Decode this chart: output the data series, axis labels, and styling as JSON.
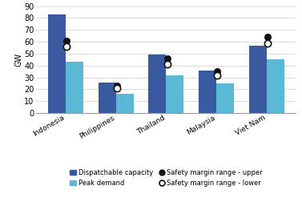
{
  "categories": [
    "Indonesia",
    "Philippines",
    "Thailand",
    "Malaysia",
    "Viet Nam"
  ],
  "dispatchable_capacity": [
    83,
    26,
    49,
    36,
    57
  ],
  "peak_demand": [
    43,
    16,
    32,
    25,
    45
  ],
  "safety_upper": [
    61,
    23,
    46,
    35,
    64
  ],
  "safety_lower": [
    56,
    21,
    41,
    32,
    59
  ],
  "bar_color_dispatch": "#3A5AA0",
  "bar_color_peak": "#5BB8D4",
  "marker_upper_color": "#111111",
  "marker_edge_color": "#111111",
  "ylabel": "GW",
  "ylim": [
    0,
    90
  ],
  "yticks": [
    0,
    10,
    20,
    30,
    40,
    50,
    60,
    70,
    80,
    90
  ],
  "legend_dispatch": "Dispatchable capacity",
  "legend_peak": "Peak demand",
  "legend_upper": "Safety margin range - upper",
  "legend_lower": "Safety margin range - lower",
  "background_color": "#ffffff",
  "grid_color": "#cccccc",
  "bar_width": 0.35
}
